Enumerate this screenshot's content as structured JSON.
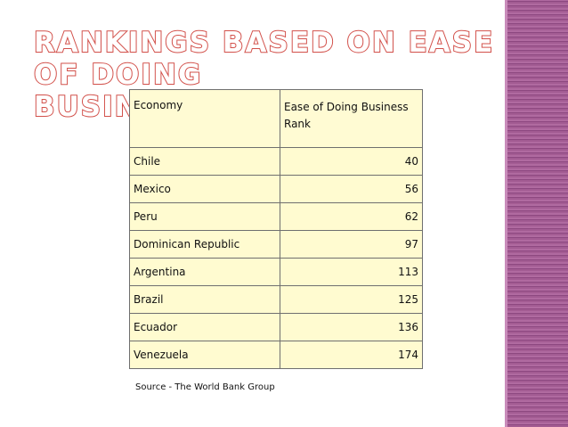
{
  "slide": {
    "title_line1": "RANKINGS BASED ON EASE OF DOING",
    "title_line2": "BUSINESS",
    "accent_color": "#d2504a",
    "stripe_color": "#a35c93"
  },
  "table": {
    "headers": [
      "Economy",
      "Ease of Doing Business Rank"
    ],
    "rows": [
      {
        "economy": "Chile",
        "rank": "40"
      },
      {
        "economy": "Mexico",
        "rank": "56"
      },
      {
        "economy": "Peru",
        "rank": "62"
      },
      {
        "economy": "Dominican Republic",
        "rank": "97"
      },
      {
        "economy": "Argentina",
        "rank": "113"
      },
      {
        "economy": "Brazil",
        "rank": "125"
      },
      {
        "economy": "Ecuador",
        "rank": "136"
      },
      {
        "economy": "Venezuela",
        "rank": "174"
      }
    ]
  },
  "source": "Source - The World Bank Group"
}
